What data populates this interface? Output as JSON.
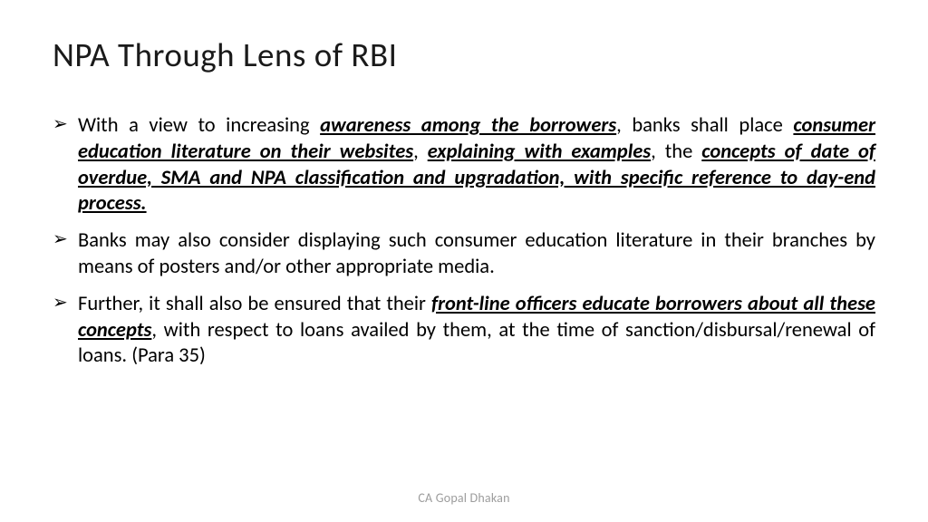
{
  "title": "NPA Through Lens of RBI",
  "footer": "CA Gopal Dhakan",
  "bullets": [
    {
      "runs": [
        {
          "t": "With a view to increasing ",
          "s": ""
        },
        {
          "t": "awareness among the borrowers",
          "s": "ue"
        },
        {
          "t": ", banks shall place ",
          "s": ""
        },
        {
          "t": "consumer education literature on their websites",
          "s": "ue"
        },
        {
          "t": ", ",
          "s": ""
        },
        {
          "t": "explaining with examples",
          "s": "ue"
        },
        {
          "t": ", the ",
          "s": ""
        },
        {
          "t": "concepts of date of overdue, SMA and NPA classification and upgradation, with specific reference to day-end process.",
          "s": "ue"
        }
      ]
    },
    {
      "runs": [
        {
          "t": "Banks may also consider displaying such consumer education literature in their branches by means of posters and/or other appropriate media.",
          "s": ""
        }
      ]
    },
    {
      "runs": [
        {
          "t": "Further, it shall also be ensured that their ",
          "s": ""
        },
        {
          "t": "front-line officers educate borrowers about all these concepts",
          "s": "ue"
        },
        {
          "t": ", with respect to loans availed by them, at the time of sanction/disbursal/renewal of loans. (Para 35)",
          "s": ""
        }
      ]
    }
  ],
  "style": {
    "background_color": "#ffffff",
    "title_color": "#1a1a1a",
    "title_fontsize": 37,
    "title_fontweight": 300,
    "body_color": "#000000",
    "body_fontsize": 22.5,
    "body_lineheight": 1.28,
    "bullet_glyph": "➢",
    "footer_color": "#9c9c9c",
    "footer_fontsize": 14
  }
}
